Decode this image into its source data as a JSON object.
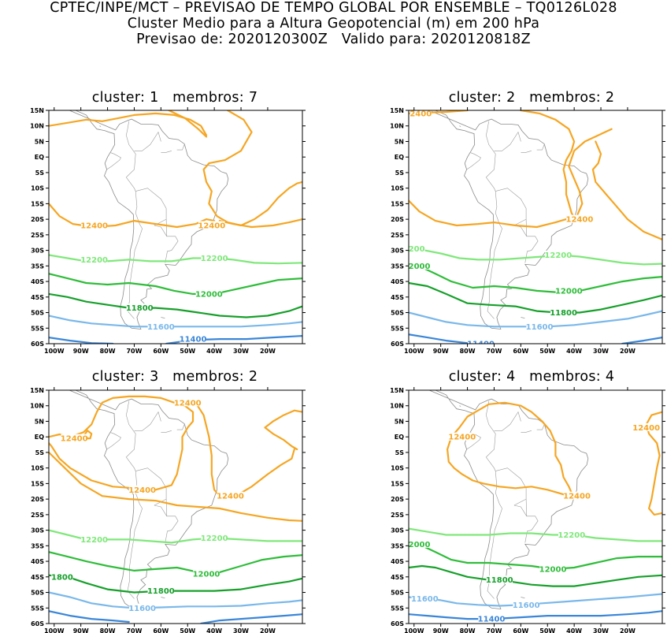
{
  "header": {
    "line1": "CPTEC/INPE/MCT – PREVISAO DE TEMPO GLOBAL POR ENSEMBLE – TQ0126L028",
    "line2": "Cluster Medio para a Altura Geopotencial (m) em 200 hPa",
    "line3": "Previsao de: 2020120300Z   Valido para: 2020120818Z"
  },
  "axes": {
    "lat_labels": [
      "15N",
      "10N",
      "5N",
      "EQ",
      "5S",
      "10S",
      "15S",
      "20S",
      "25S",
      "30S",
      "35S",
      "40S",
      "45S",
      "50S",
      "55S",
      "60S"
    ],
    "lon_labels": [
      "100W",
      "90W",
      "80W",
      "70W",
      "60W",
      "50W",
      "40W",
      "30W",
      "20W"
    ]
  },
  "contour_colors": {
    "12400": "#f5a623",
    "12200": "#7fe87a",
    "12000": "#2fbd3a",
    "11800": "#16a02a",
    "11600": "#7ab8ea",
    "11400": "#3a86d8"
  },
  "panels": [
    {
      "title": "cluster: 1   membros: 7",
      "labels": [
        {
          "text": "12400",
          "lon": -85,
          "lat": -22,
          "level": "12400"
        },
        {
          "text": "12400",
          "lon": -41,
          "lat": -22,
          "level": "12400"
        },
        {
          "text": "12200",
          "lon": -85,
          "lat": -33,
          "level": "12200"
        },
        {
          "text": "12200",
          "lon": -40,
          "lat": -32.5,
          "level": "12200"
        },
        {
          "text": "12000",
          "lon": -42,
          "lat": -44,
          "level": "12000"
        },
        {
          "text": "11800",
          "lon": -68,
          "lat": -48.5,
          "level": "11800"
        },
        {
          "text": "11600",
          "lon": -60,
          "lat": -54.5,
          "level": "11600"
        },
        {
          "text": "11400",
          "lon": -48,
          "lat": -58.5,
          "level": "11400"
        }
      ]
    },
    {
      "title": "cluster: 2   membros: 2",
      "labels": [
        {
          "text": "2400",
          "lon": -97.5,
          "lat": 14,
          "level": "12400"
        },
        {
          "text": "12400",
          "lon": -38,
          "lat": -20,
          "level": "12400"
        },
        {
          "text": "12200",
          "lon": -46,
          "lat": -31.5,
          "level": "12200"
        },
        {
          "text": "200",
          "lon": -99,
          "lat": -29.5,
          "level": "12200"
        },
        {
          "text": "2000",
          "lon": -98,
          "lat": -35,
          "level": "12000"
        },
        {
          "text": "12000",
          "lon": -42,
          "lat": -43,
          "level": "12000"
        },
        {
          "text": "11800",
          "lon": -44,
          "lat": -50,
          "level": "11800"
        },
        {
          "text": "11600",
          "lon": -53,
          "lat": -54.5,
          "level": "11600"
        },
        {
          "text": "11400",
          "lon": -75,
          "lat": -60,
          "level": "11400"
        }
      ]
    },
    {
      "title": "cluster: 3   membros: 2",
      "labels": [
        {
          "text": "12400",
          "lon": -50,
          "lat": 11,
          "level": "12400"
        },
        {
          "text": "12400",
          "lon": -92.5,
          "lat": -0.5,
          "level": "12400"
        },
        {
          "text": "12400",
          "lon": -67,
          "lat": -17,
          "level": "12400"
        },
        {
          "text": "12400",
          "lon": -34,
          "lat": -19,
          "level": "12400"
        },
        {
          "text": "12200",
          "lon": -85,
          "lat": -33,
          "level": "12200"
        },
        {
          "text": "12200",
          "lon": -40,
          "lat": -32.5,
          "level": "12200"
        },
        {
          "text": "1800",
          "lon": -97,
          "lat": -45,
          "level": "11800"
        },
        {
          "text": "12000",
          "lon": -43,
          "lat": -44,
          "level": "12000"
        },
        {
          "text": "11800",
          "lon": -60,
          "lat": -49.5,
          "level": "11800"
        },
        {
          "text": "11600",
          "lon": -67,
          "lat": -55,
          "level": "11600"
        }
      ]
    },
    {
      "title": "cluster: 4   membros: 4",
      "labels": [
        {
          "text": "12400",
          "lon": -82,
          "lat": 0,
          "level": "12400"
        },
        {
          "text": "12400",
          "lon": -39,
          "lat": -19,
          "level": "12400"
        },
        {
          "text": "12400",
          "lon": -13,
          "lat": 3,
          "level": "12400"
        },
        {
          "text": "12200",
          "lon": -41,
          "lat": -31.5,
          "level": "12200"
        },
        {
          "text": "2000",
          "lon": -98,
          "lat": -34.5,
          "level": "12000"
        },
        {
          "text": "12000",
          "lon": -48,
          "lat": -42.5,
          "level": "12000"
        },
        {
          "text": "11800",
          "lon": -68,
          "lat": -46,
          "level": "11800"
        },
        {
          "text": "11600",
          "lon": -96,
          "lat": -52,
          "level": "11600"
        },
        {
          "text": "11600",
          "lon": -58,
          "lat": -54,
          "level": "11600"
        },
        {
          "text": "11400",
          "lon": -71,
          "lat": -58.5,
          "level": "11400"
        }
      ]
    }
  ]
}
